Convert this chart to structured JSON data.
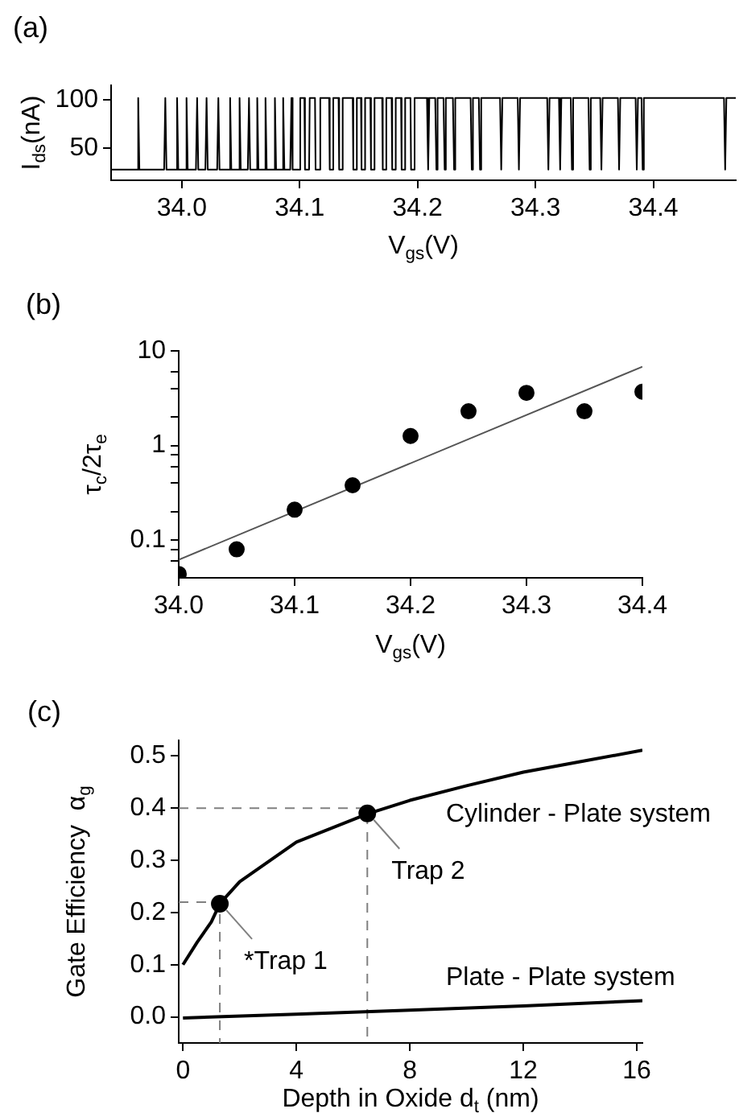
{
  "chart_data": [
    {
      "type": "line",
      "title": "(a)",
      "xlabel": "V$_{gs}$(V)",
      "ylabel": "I$_{ds}$(nA)",
      "xlim": [
        33.94,
        34.47
      ],
      "ylim": [
        17,
        115
      ],
      "xticks": [
        {
          "value": 34,
          "label": "34.0"
        },
        34.1,
        34.2,
        34.3,
        34.4
      ],
      "yticks": [
        50,
        100
      ],
      "series": [
        {
          "color": "#000000",
          "x": [
            33.94,
            33.962,
            33.963,
            33.964,
            33.985,
            33.986,
            33.987,
            33.995,
            33.996,
            33.997,
            34.003,
            34.004,
            34.005,
            34.012,
            34.013,
            34.014,
            34.02,
            34.021,
            34.022,
            34.03,
            34.031,
            34.032,
            34.04,
            34.041,
            34.042,
            34.048,
            34.049,
            34.05,
            34.056,
            34.057,
            34.058,
            34.063,
            34.064,
            34.065,
            34.07,
            34.071,
            34.072,
            34.078,
            34.079,
            34.08,
            34.085,
            34.086,
            34.087,
            34.092,
            34.093,
            34.094,
            34.1,
            34.1005,
            34.104,
            34.1045,
            34.108,
            34.1085,
            34.113,
            34.1135,
            34.117,
            34.1175,
            34.125,
            34.1255,
            34.128,
            34.1285,
            34.133,
            34.1335,
            34.136,
            34.1365,
            34.145,
            34.1455,
            34.148,
            34.1485,
            34.152,
            34.1525,
            34.155,
            34.1555,
            34.16,
            34.1605,
            34.163,
            34.1635,
            34.17,
            34.1705,
            34.173,
            34.1735,
            34.178,
            34.1785,
            34.181,
            34.1815,
            34.186,
            34.1865,
            34.189,
            34.1895,
            34.194,
            34.1945,
            34.197,
            34.1975,
            34.208,
            34.209,
            34.21,
            34.215,
            34.216,
            34.217,
            34.222,
            34.223,
            34.224,
            34.23,
            34.231,
            34.232,
            34.245,
            34.246,
            34.247,
            34.252,
            34.253,
            34.254,
            34.27,
            34.271,
            34.272,
            34.285,
            34.286,
            34.287,
            34.31,
            34.311,
            34.312,
            34.32,
            34.321,
            34.322,
            34.33,
            34.331,
            34.332,
            34.345,
            34.346,
            34.347,
            34.355,
            34.356,
            34.357,
            34.37,
            34.371,
            34.372,
            34.385,
            34.386,
            34.387,
            34.39,
            34.391,
            34.392,
            34.46,
            34.461,
            34.462,
            34.47
          ],
          "values": [
            28,
            28,
            102,
            28,
            28,
            102,
            28,
            28,
            102,
            28,
            28,
            102,
            28,
            28,
            102,
            28,
            28,
            102,
            28,
            28,
            102,
            28,
            28,
            102,
            28,
            28,
            102,
            28,
            28,
            102,
            28,
            28,
            102,
            28,
            28,
            102,
            28,
            28,
            102,
            28,
            28,
            102,
            28,
            28,
            102,
            28,
            28,
            102,
            102,
            28,
            28,
            102,
            102,
            28,
            28,
            102,
            102,
            28,
            28,
            102,
            102,
            28,
            28,
            102,
            102,
            28,
            28,
            102,
            102,
            28,
            28,
            102,
            102,
            28,
            28,
            102,
            102,
            28,
            28,
            102,
            102,
            28,
            28,
            102,
            102,
            28,
            28,
            102,
            102,
            28,
            28,
            102,
            102,
            28,
            102,
            102,
            28,
            102,
            102,
            28,
            102,
            102,
            28,
            102,
            102,
            28,
            102,
            102,
            28,
            102,
            102,
            28,
            102,
            102,
            28,
            102,
            102,
            28,
            102,
            102,
            28,
            102,
            102,
            28,
            102,
            102,
            28,
            102,
            102,
            28,
            102,
            102,
            28,
            102,
            102,
            28,
            102,
            102,
            28,
            102,
            102,
            28,
            102,
            102
          ]
        }
      ]
    },
    {
      "type": "scatter",
      "title": "(b)",
      "xlabel": "V$_{gs}$(V)",
      "ylabel": "τ$_{c}$/2τ$_{e}$",
      "log": "y",
      "xlim": [
        34.0,
        34.4
      ],
      "ylim": [
        0.04,
        10
      ],
      "xticks": [
        {
          "value": 34,
          "label": "34.0"
        },
        34.1,
        34.2,
        34.3,
        34.4
      ],
      "yticks": [
        {
          "value": 0.06,
          "label": null
        },
        {
          "value": 0.08,
          "label": null
        },
        0.1,
        {
          "value": 0.2,
          "label": null
        },
        {
          "value": 0.4,
          "label": null
        },
        {
          "value": 0.6,
          "label": null
        },
        {
          "value": 0.8,
          "label": null
        },
        1,
        {
          "value": 2,
          "label": null
        },
        {
          "value": 4,
          "label": null
        },
        {
          "value": 6,
          "label": null
        },
        10
      ],
      "series": [
        {
          "color": "#000000",
          "x": [
            34.0,
            34.05,
            34.1,
            34.15,
            34.2,
            34.25,
            34.3,
            34.35,
            34.4
          ],
          "values": [
            0.044,
            0.08,
            0.21,
            0.38,
            1.26,
            2.3,
            3.6,
            2.3,
            3.7
          ]
        },
        {
          "type": "line",
          "color": "#555555",
          "x": [
            34.0,
            34.4
          ],
          "values": [
            0.062,
            6.8
          ]
        }
      ]
    },
    {
      "type": "line",
      "title": "(c)",
      "xlabel": "Depth in Oxide d$_{t}$ (nm)",
      "ylabel": "Gate Efficiency  α$_{g}$",
      "xlim": [
        -0.15,
        16.2
      ],
      "ylim": [
        -0.05,
        0.53
      ],
      "xticks": [
        0,
        4,
        8,
        12,
        16
      ],
      "yticks": [
        {
          "value": 0,
          "label": "0.0"
        },
        0.1,
        0.2,
        0.3,
        0.4,
        0.5
      ],
      "annotations": [
        {
          "text": "*Trap 1",
          "x": 1.3,
          "y": 0.217
        },
        {
          "text": "Trap 2",
          "x": 6.5,
          "y": 0.39
        }
      ],
      "series": [
        {
          "name": "Cylinder - Plate system",
          "color": "#000000",
          "x": [
            0,
            0.5,
            1,
            1.3,
            2,
            4,
            6.5,
            8,
            10,
            12,
            14,
            16.2
          ],
          "values": [
            0.1,
            0.143,
            0.182,
            0.217,
            0.259,
            0.335,
            0.389,
            0.415,
            0.443,
            0.469,
            0.489,
            0.511
          ]
        },
        {
          "name": "Plate - Plate system",
          "color": "#000000",
          "x": [
            0,
            4,
            8,
            12,
            16.2
          ],
          "values": [
            -0.002,
            0.005,
            0.013,
            0.021,
            0.031
          ]
        },
        {
          "type": "scatter",
          "color": "#000000",
          "x": [
            1.3,
            6.5
          ],
          "values": [
            0.217,
            0.39
          ]
        },
        {
          "line_style": "dashed",
          "color": "#808080",
          "x": [
            -0.15,
            1.3,
            1.3
          ],
          "values": [
            0.22,
            0.22,
            -0.05
          ]
        },
        {
          "line_style": "dashed",
          "color": "#808080",
          "x": [
            -0.15,
            6.5,
            6.5
          ],
          "values": [
            0.4,
            0.4,
            -0.05
          ]
        }
      ]
    }
  ]
}
